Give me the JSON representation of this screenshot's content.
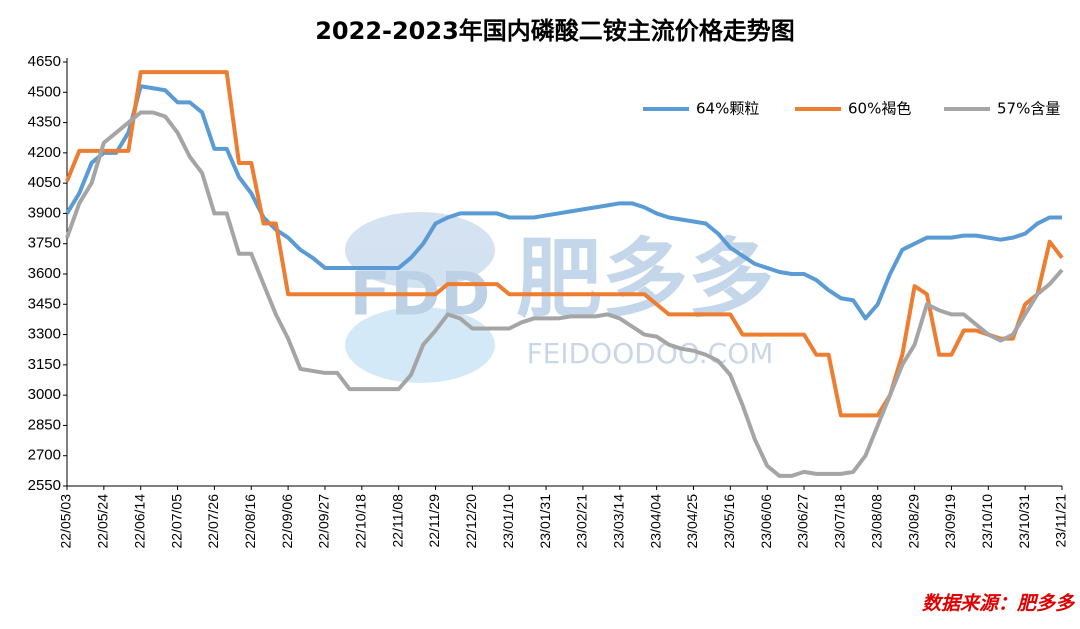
{
  "chart_data": {
    "type": "line",
    "title": "2022-2023年国内磷酸二铵主流价格走势图",
    "source": "数据来源：肥多多",
    "watermark": {
      "logo": "FDD",
      "name": "肥多多",
      "site": "FEIDOODOO.COM"
    },
    "categories": [
      "22/05/03",
      null,
      null,
      "22/05/24",
      null,
      null,
      "22/06/14",
      null,
      null,
      "22/07/05",
      null,
      null,
      "22/07/26",
      null,
      null,
      "22/08/16",
      null,
      null,
      "22/09/06",
      null,
      null,
      "22/09/27",
      null,
      null,
      "22/10/18",
      null,
      null,
      "22/11/08",
      null,
      null,
      "22/11/29",
      null,
      null,
      "22/12/20",
      null,
      null,
      "23/01/10",
      null,
      null,
      "23/01/31",
      null,
      null,
      "23/02/21",
      null,
      null,
      "23/03/14",
      null,
      null,
      "23/04/04",
      null,
      null,
      "23/04/25",
      null,
      null,
      "23/05/16",
      null,
      null,
      "23/06/06",
      null,
      null,
      "23/06/27",
      null,
      null,
      "23/07/18",
      null,
      null,
      "23/08/08",
      null,
      null,
      "23/08/29",
      null,
      null,
      "23/09/19",
      null,
      null,
      "23/10/10",
      null,
      null,
      "23/10/31",
      null,
      null,
      "23/11/21"
    ],
    "series": [
      {
        "name": "64%颗粒",
        "color": "#5b9bd5",
        "values": [
          3900,
          4000,
          4150,
          4200,
          4200,
          4300,
          4530,
          4520,
          4510,
          4450,
          4450,
          4400,
          4220,
          4220,
          4080,
          4000,
          3880,
          3820,
          3780,
          3720,
          3680,
          3630,
          3630,
          3630,
          3630,
          3630,
          3630,
          3630,
          3680,
          3750,
          3850,
          3880,
          3900,
          3900,
          3900,
          3900,
          3880,
          3880,
          3880,
          3890,
          3900,
          3910,
          3920,
          3930,
          3940,
          3950,
          3950,
          3930,
          3900,
          3880,
          3870,
          3860,
          3850,
          3800,
          3730,
          3690,
          3650,
          3630,
          3610,
          3600,
          3600,
          3570,
          3520,
          3480,
          3470,
          3380,
          3450,
          3600,
          3720,
          3750,
          3780,
          3780,
          3780,
          3790,
          3790,
          3780,
          3770,
          3780,
          3800,
          3850,
          3880,
          3880
        ]
      },
      {
        "name": "60%褐色",
        "color": "#ed7d31",
        "values": [
          4060,
          4210,
          4210,
          4210,
          4210,
          4210,
          4600,
          4600,
          4600,
          4600,
          4600,
          4600,
          4600,
          4600,
          4150,
          4150,
          3850,
          3850,
          3500,
          3500,
          3500,
          3500,
          3500,
          3500,
          3500,
          3500,
          3500,
          3500,
          3500,
          3500,
          3500,
          3550,
          3550,
          3550,
          3550,
          3550,
          3500,
          3500,
          3500,
          3500,
          3500,
          3500,
          3500,
          3500,
          3500,
          3500,
          3500,
          3500,
          3450,
          3400,
          3400,
          3400,
          3400,
          3400,
          3400,
          3300,
          3300,
          3300,
          3300,
          3300,
          3300,
          3200,
          3200,
          2900,
          2900,
          2900,
          2900,
          3000,
          3200,
          3540,
          3500,
          3200,
          3200,
          3320,
          3320,
          3300,
          3280,
          3280,
          3450,
          3500,
          3760,
          3680
        ]
      },
      {
        "name": "57%含量",
        "color": "#a5a5a5",
        "values": [
          3780,
          3950,
          4050,
          4250,
          4300,
          4350,
          4400,
          4400,
          4380,
          4300,
          4180,
          4100,
          3900,
          3900,
          3700,
          3700,
          3550,
          3400,
          3280,
          3130,
          3120,
          3110,
          3110,
          3030,
          3030,
          3030,
          3030,
          3030,
          3100,
          3250,
          3320,
          3400,
          3380,
          3330,
          3330,
          3330,
          3330,
          3360,
          3380,
          3380,
          3380,
          3390,
          3390,
          3390,
          3400,
          3380,
          3340,
          3300,
          3290,
          3250,
          3230,
          3220,
          3200,
          3170,
          3100,
          2950,
          2780,
          2650,
          2600,
          2600,
          2620,
          2610,
          2610,
          2610,
          2620,
          2700,
          2850,
          3000,
          3150,
          3250,
          3450,
          3420,
          3400,
          3400,
          3350,
          3300,
          3270,
          3300,
          3400,
          3500,
          3550,
          3620
        ]
      }
    ],
    "ylim": [
      2550,
      4650
    ],
    "yticks": [
      2550,
      2700,
      2850,
      3000,
      3150,
      3300,
      3450,
      3600,
      3750,
      3900,
      4050,
      4200,
      4350,
      4500,
      4650
    ],
    "legend": "top-right"
  }
}
